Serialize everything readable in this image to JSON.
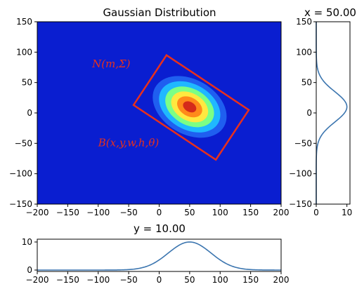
{
  "chart_data": [
    {
      "type": "heatmap",
      "title": "Gaussian Distribution",
      "xlim": [
        -200,
        200
      ],
      "ylim": [
        -150,
        150
      ],
      "x_ticks": [
        "−200",
        "−150",
        "−100",
        "−50",
        "0",
        "50",
        "100",
        "150",
        "200"
      ],
      "y_ticks": [
        "150",
        "100",
        "50",
        "0",
        "−50",
        "−100",
        "−150"
      ],
      "x_tick_values": [
        -200,
        -150,
        -100,
        -50,
        0,
        50,
        100,
        150,
        200
      ],
      "y_tick_values": [
        150,
        100,
        50,
        0,
        -50,
        -100,
        -150
      ],
      "mean": [
        50,
        10
      ],
      "ellipse_semi_axes": [
        65,
        45
      ],
      "angle_deg": -30,
      "contour_levels": 7,
      "colors": [
        "#0a1ed0",
        "#1f5ff0",
        "#1fb8ff",
        "#7cff85",
        "#ffe840",
        "#ff8a1a",
        "#d42a1a"
      ],
      "annotations": [
        {
          "label": "N(m,Σ)",
          "x": -110,
          "y": 75
        },
        {
          "label": "B(x,y,w,h,θ)",
          "x": -100,
          "y": -55
        }
      ],
      "box_color": "#e8301c",
      "box_corners": [
        [
          12,
          95
        ],
        [
          147,
          5
        ],
        [
          93,
          -77
        ],
        [
          -42,
          13
        ]
      ]
    },
    {
      "type": "line",
      "title": "x = 50.00",
      "orientation": "vertical",
      "x_ticks": [
        "0",
        "10"
      ],
      "x_tick_values": [
        0,
        10
      ],
      "xlim": [
        0,
        11
      ],
      "y_ticks": [
        "150",
        "100",
        "50",
        "0",
        "−50",
        "−100",
        "−150"
      ],
      "y_tick_values": [
        150,
        100,
        50,
        0,
        -50,
        -100,
        -150
      ],
      "ylim": [
        -150,
        150
      ],
      "peak": 10,
      "center": 10,
      "sigma": 25,
      "color": "#3b75af"
    },
    {
      "type": "line",
      "title": "y = 10.00",
      "x_ticks": [
        "−200",
        "−150",
        "−100",
        "−50",
        "0",
        "50",
        "100",
        "150",
        "200"
      ],
      "x_tick_values": [
        -200,
        -150,
        -100,
        -50,
        0,
        50,
        100,
        150,
        200
      ],
      "xlim": [
        -200,
        200
      ],
      "y_ticks": [
        "10",
        "0"
      ],
      "y_tick_values": [
        10,
        0
      ],
      "ylim": [
        -0.5,
        11
      ],
      "peak": 10,
      "center": 50,
      "sigma": 35,
      "color": "#3b75af"
    }
  ]
}
